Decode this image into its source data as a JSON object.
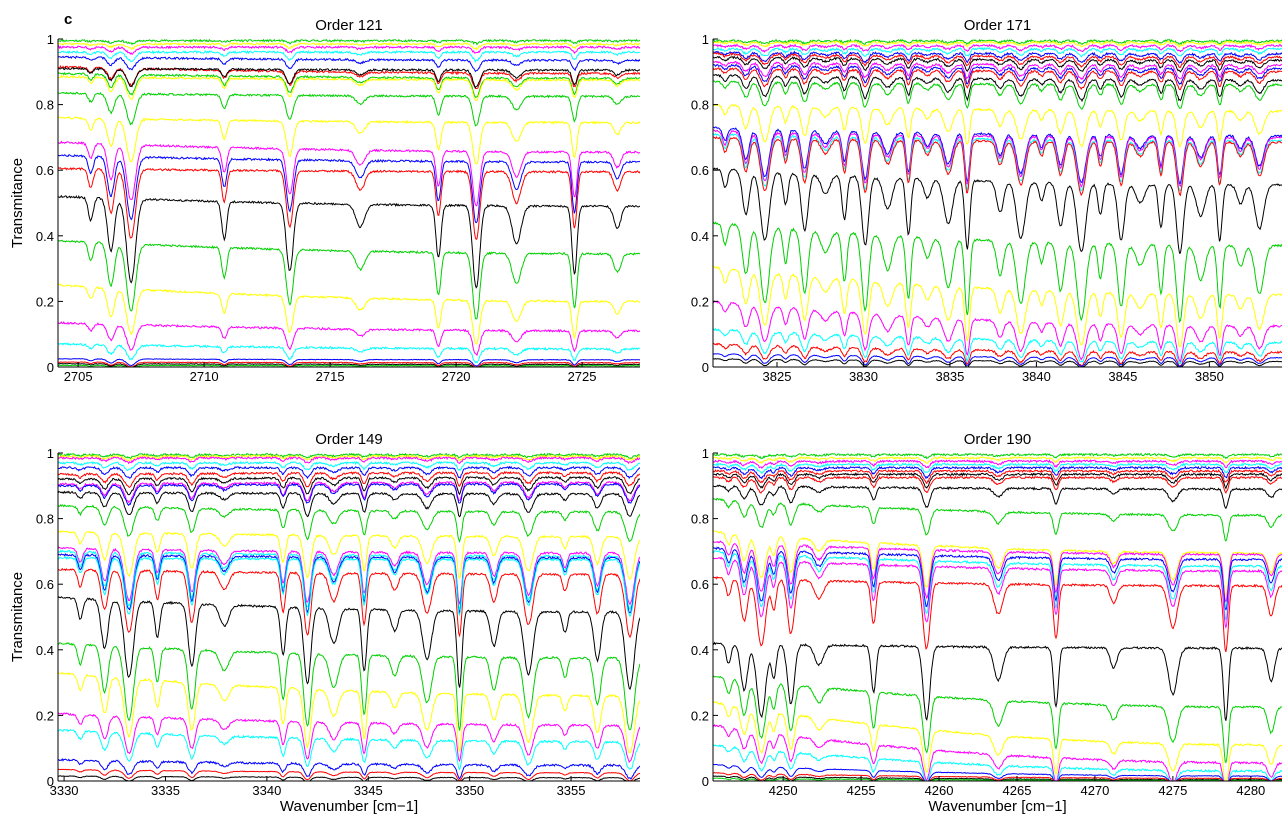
{
  "panel_label": "c",
  "chart_data": [
    {
      "type": "line",
      "title": "Order 121",
      "xlabel": "",
      "ylabel": "Transmitance",
      "xlim": [
        2704.2,
        2727.3
      ],
      "ylim": [
        0,
        1
      ],
      "xticks": [
        2705,
        2710,
        2715,
        2720,
        2725
      ],
      "yticks": [
        0,
        0.2,
        0.4,
        0.6,
        0.8,
        1
      ],
      "xtick_labels": [
        "2705",
        "2710",
        "2715",
        "2720",
        "2725"
      ],
      "ytick_labels": [
        "0",
        "0.2",
        "0.4",
        "0.6",
        "0.8",
        "1"
      ],
      "line_dips": [
        2705.5,
        2706.3,
        2707.1,
        2710.8,
        2713.4,
        2716.2,
        2719.3,
        2720.8,
        2722.4,
        2724.7,
        2726.4
      ],
      "line_start_levels": [
        0.995,
        0.985,
        0.975,
        0.96,
        0.945,
        0.915,
        0.91,
        0.895,
        0.885,
        0.835,
        0.76,
        0.685,
        0.645,
        0.605,
        0.52,
        0.385,
        0.25,
        0.135,
        0.07,
        0.025,
        0.015,
        0.01,
        0.005
      ],
      "line_end_levels": [
        0.995,
        0.985,
        0.975,
        0.96,
        0.935,
        0.895,
        0.905,
        0.88,
        0.875,
        0.825,
        0.745,
        0.655,
        0.625,
        0.595,
        0.49,
        0.345,
        0.2,
        0.11,
        0.055,
        0.022,
        0.013,
        0.008,
        0.004
      ],
      "line_colors": [
        "#00d000",
        "#ffff00",
        "#ff00ff",
        "#00ffff",
        "#0000ff",
        "#ff0000",
        "#000000",
        "#00d000",
        "#ffff00",
        "#00d000",
        "#ffff00",
        "#ff00ff",
        "#0000ff",
        "#ff0000",
        "#000000",
        "#00d000",
        "#ffff00",
        "#ff00ff",
        "#00ffff",
        "#0000ff",
        "#ff0000",
        "#000000",
        "#00d000"
      ]
    },
    {
      "type": "line",
      "title": "Order 171",
      "xlabel": "",
      "ylabel": "",
      "xlim": [
        3821.3,
        3854.2
      ],
      "ylim": [
        0,
        1
      ],
      "xticks": [
        3825,
        3830,
        3835,
        3840,
        3845,
        3850
      ],
      "yticks": [
        0,
        0.2,
        0.4,
        0.6,
        0.8,
        1
      ],
      "xtick_labels": [
        "3825",
        "3830",
        "3835",
        "3840",
        "3845",
        "3850"
      ],
      "ytick_labels": [
        "0",
        "0.2",
        "0.4",
        "0.6",
        "0.8",
        "1"
      ],
      "line_dips": [
        3822.0,
        3823.2,
        3824.3,
        3825.5,
        3826.6,
        3827.8,
        3828.9,
        3830.1,
        3831.4,
        3832.6,
        3833.7,
        3834.9,
        3836.0,
        3837.9,
        3839.1,
        3840.3,
        3841.4,
        3842.6,
        3843.7,
        3844.9,
        3846.0,
        3847.2,
        3848.3,
        3849.5,
        3850.6,
        3851.8,
        3852.9
      ],
      "line_start_levels": [
        0.995,
        0.99,
        0.98,
        0.97,
        0.96,
        0.955,
        0.945,
        0.93,
        0.92,
        0.91,
        0.89,
        0.87,
        0.8,
        0.73,
        0.72,
        0.71,
        0.7,
        0.605,
        0.44,
        0.305,
        0.2,
        0.115,
        0.07,
        0.04,
        0.025
      ],
      "line_end_levels": [
        0.995,
        0.99,
        0.98,
        0.97,
        0.955,
        0.945,
        0.935,
        0.92,
        0.91,
        0.9,
        0.875,
        0.86,
        0.78,
        0.705,
        0.7,
        0.69,
        0.685,
        0.555,
        0.37,
        0.22,
        0.125,
        0.075,
        0.045,
        0.028,
        0.017
      ],
      "line_colors": [
        "#00d000",
        "#ffff00",
        "#ff00ff",
        "#00ffff",
        "#0000ff",
        "#ff0000",
        "#000000",
        "#ff00ff",
        "#0000ff",
        "#ff0000",
        "#000000",
        "#00d000",
        "#ffff00",
        "#0000ff",
        "#ff00ff",
        "#00ffff",
        "#ff0000",
        "#000000",
        "#00d000",
        "#ffff00",
        "#ff00ff",
        "#00ffff",
        "#ff0000",
        "#0000ff",
        "#000000"
      ]
    },
    {
      "type": "line",
      "title": "Order 149",
      "xlabel": "Wavenumber [cm−1]",
      "ylabel": "Transmitance",
      "xlim": [
        3329.7,
        3358.4
      ],
      "ylim": [
        0,
        1
      ],
      "xticks": [
        3330,
        3335,
        3340,
        3345,
        3350,
        3355
      ],
      "yticks": [
        0,
        0.2,
        0.4,
        0.6,
        0.8,
        1
      ],
      "xtick_labels": [
        "3330",
        "3335",
        "3340",
        "3345",
        "3350",
        "3355"
      ],
      "ytick_labels": [
        "0",
        "0.2",
        "0.4",
        "0.6",
        "0.8",
        "1"
      ],
      "line_dips": [
        3330.8,
        3332.0,
        3333.2,
        3334.6,
        3336.3,
        3337.9,
        3340.8,
        3342.0,
        3343.3,
        3344.8,
        3346.3,
        3347.9,
        3349.5,
        3351.2,
        3352.9,
        3354.7,
        3356.3,
        3357.9
      ],
      "line_start_levels": [
        0.995,
        0.99,
        0.985,
        0.97,
        0.955,
        0.935,
        0.92,
        0.905,
        0.9,
        0.88,
        0.84,
        0.76,
        0.71,
        0.7,
        0.69,
        0.68,
        0.645,
        0.56,
        0.42,
        0.33,
        0.205,
        0.155,
        0.065,
        0.035,
        0.015
      ],
      "line_end_levels": [
        0.995,
        0.99,
        0.985,
        0.97,
        0.955,
        0.94,
        0.925,
        0.91,
        0.905,
        0.875,
        0.82,
        0.745,
        0.695,
        0.685,
        0.68,
        0.675,
        0.63,
        0.515,
        0.375,
        0.26,
        0.17,
        0.12,
        0.048,
        0.025,
        0.01
      ],
      "line_colors": [
        "#00d000",
        "#ffff00",
        "#ff00ff",
        "#00ffff",
        "#0000ff",
        "#ff0000",
        "#000000",
        "#ff00ff",
        "#0000ff",
        "#000000",
        "#00d000",
        "#ffff00",
        "#ff00ff",
        "#00ffff",
        "#0000ff",
        "#00ffff",
        "#ff0000",
        "#000000",
        "#00d000",
        "#ffff00",
        "#ff00ff",
        "#00ffff",
        "#0000ff",
        "#ff0000",
        "#000000"
      ]
    },
    {
      "type": "line",
      "title": "Order 190",
      "xlabel": "Wavenumber [cm−1]",
      "ylabel": "",
      "xlim": [
        4245.5,
        4282.0
      ],
      "ylim": [
        0,
        1
      ],
      "xticks": [
        4250,
        4255,
        4260,
        4265,
        4270,
        4275,
        4280
      ],
      "yticks": [
        0,
        0.2,
        0.4,
        0.6,
        0.8,
        1
      ],
      "xtick_labels": [
        "4250",
        "4255",
        "4260",
        "4265",
        "4270",
        "4275",
        "4280"
      ],
      "ytick_labels": [
        "0",
        "0.2",
        "0.4",
        "0.6",
        "0.8",
        "1"
      ],
      "line_dips": [
        4246.5,
        4247.5,
        4248.6,
        4249.4,
        4250.5,
        4252.3,
        4255.8,
        4259.2,
        4263.8,
        4267.5,
        4271.2,
        4275.0,
        4278.4,
        4281.3
      ],
      "line_start_levels": [
        0.995,
        0.985,
        0.975,
        0.965,
        0.955,
        0.945,
        0.935,
        0.925,
        0.9,
        0.86,
        0.76,
        0.73,
        0.71,
        0.7,
        0.68,
        0.62,
        0.42,
        0.32,
        0.24,
        0.17,
        0.11,
        0.05,
        0.025,
        0.015,
        0.008
      ],
      "line_end_levels": [
        0.995,
        0.985,
        0.975,
        0.965,
        0.955,
        0.945,
        0.935,
        0.925,
        0.89,
        0.81,
        0.695,
        0.69,
        0.675,
        0.655,
        0.64,
        0.595,
        0.405,
        0.225,
        0.11,
        0.055,
        0.03,
        0.015,
        0.008,
        0.004,
        0.002
      ],
      "line_colors": [
        "#00d000",
        "#ffff00",
        "#ff00ff",
        "#00ffff",
        "#0000ff",
        "#ff0000",
        "#000000",
        "#ff0000",
        "#000000",
        "#00d000",
        "#ffff00",
        "#ff00ff",
        "#0000ff",
        "#00ffff",
        "#ff00ff",
        "#ff0000",
        "#000000",
        "#00d000",
        "#ffff00",
        "#ff00ff",
        "#00ffff",
        "#0000ff",
        "#ff0000",
        "#000000",
        "#00d000"
      ]
    }
  ]
}
